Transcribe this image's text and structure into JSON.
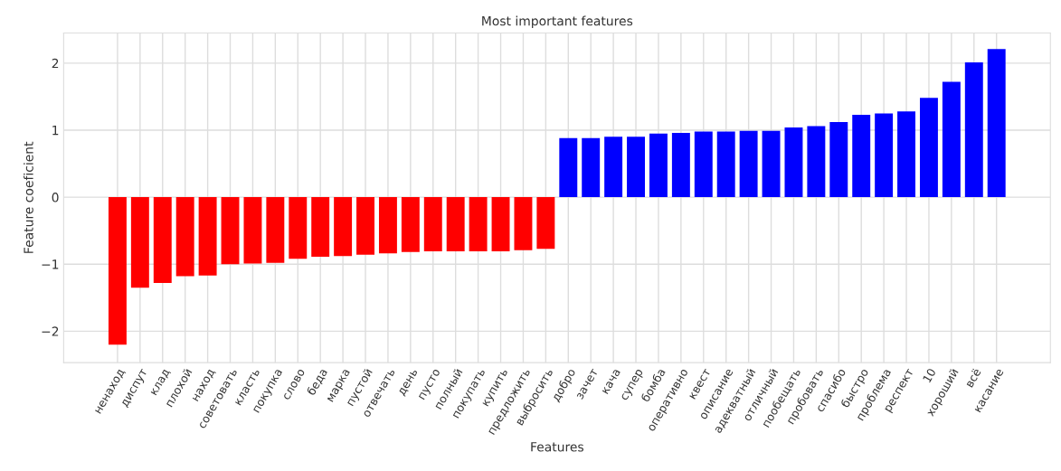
{
  "chart_data": {
    "type": "bar",
    "title": "Most important features",
    "xlabel": "Features",
    "ylabel": "Feature coeficient",
    "categories": [
      "ненаход",
      "диспут",
      "клад",
      "плохой",
      "наход",
      "советовать",
      "класть",
      "покупка",
      "слово",
      "беда",
      "марка",
      "пустой",
      "отвечать",
      "день",
      "пусто",
      "полный",
      "покупать",
      "купить",
      "предложить",
      "выбросить",
      "добро",
      "зачет",
      "кача",
      "супер",
      "бомба",
      "оперативно",
      "квест",
      "описание",
      "адекватный",
      "отличный",
      "пообещать",
      "пробовать",
      "спасибо",
      "быстро",
      "проблема",
      "респект",
      "10",
      "хороший",
      "всё",
      "касание"
    ],
    "values": [
      -2.2,
      -1.35,
      -1.28,
      -1.18,
      -1.17,
      -1.0,
      -0.99,
      -0.98,
      -0.92,
      -0.89,
      -0.88,
      -0.86,
      -0.84,
      -0.82,
      -0.81,
      -0.81,
      -0.81,
      -0.81,
      -0.79,
      -0.77,
      0.88,
      0.88,
      0.9,
      0.9,
      0.95,
      0.96,
      0.98,
      0.98,
      0.99,
      0.99,
      1.04,
      1.06,
      1.12,
      1.23,
      1.25,
      1.28,
      1.48,
      1.72,
      2.01,
      2.21
    ],
    "colors": [
      "#ff0000",
      "#ff0000",
      "#ff0000",
      "#ff0000",
      "#ff0000",
      "#ff0000",
      "#ff0000",
      "#ff0000",
      "#ff0000",
      "#ff0000",
      "#ff0000",
      "#ff0000",
      "#ff0000",
      "#ff0000",
      "#ff0000",
      "#ff0000",
      "#ff0000",
      "#ff0000",
      "#ff0000",
      "#ff0000",
      "#0000ff",
      "#0000ff",
      "#0000ff",
      "#0000ff",
      "#0000ff",
      "#0000ff",
      "#0000ff",
      "#0000ff",
      "#0000ff",
      "#0000ff",
      "#0000ff",
      "#0000ff",
      "#0000ff",
      "#0000ff",
      "#0000ff",
      "#0000ff",
      "#0000ff",
      "#0000ff",
      "#0000ff",
      "#0000ff"
    ],
    "ylim": [
      -2.47,
      2.45
    ],
    "yticks": [
      -2,
      -1,
      0,
      1,
      2
    ],
    "grid": true
  }
}
